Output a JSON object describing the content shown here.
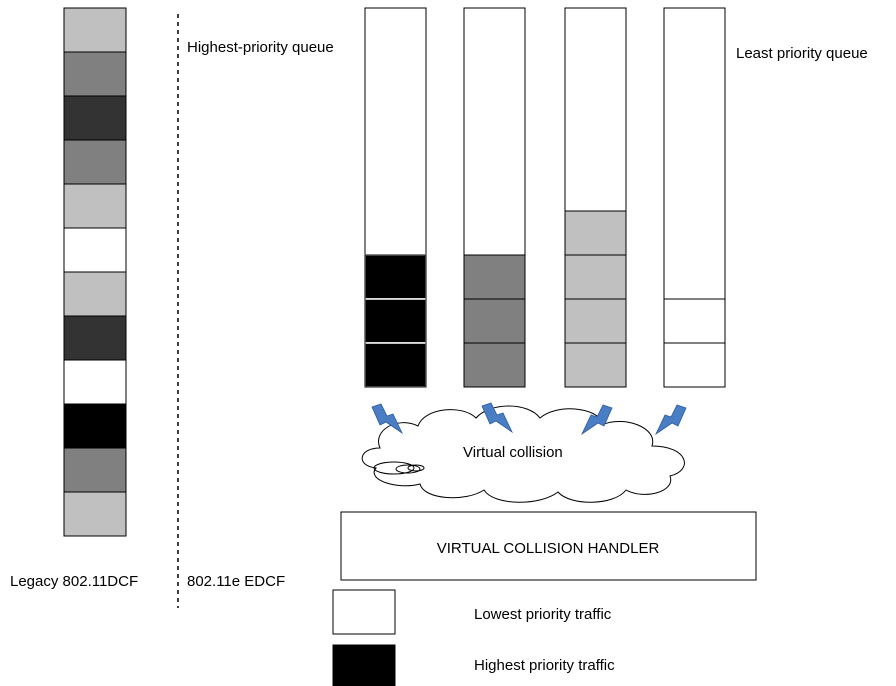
{
  "labels": {
    "highest_queue": "Highest-priority queue",
    "least_queue": "Least priority queue",
    "legacy": "Legacy 802.11DCF",
    "edcf": "802.11e EDCF",
    "virtual_collision": "Virtual collision",
    "handler": "VIRTUAL COLLISION HANDLER",
    "legend_lowest": "Lowest priority traffic",
    "legend_highest": "Highest priority traffic"
  },
  "colors": {
    "white": "#ffffff",
    "light_gray": "#c0c0c0",
    "gray": "#808080",
    "dark_gray": "#333333",
    "black": "#000000",
    "lightning": "#4a7ec4"
  },
  "legacy_stack": [
    "light_gray",
    "gray",
    "dark_gray",
    "gray",
    "light_gray",
    "white",
    "light_gray",
    "dark_gray",
    "white",
    "black",
    "gray",
    "light_gray"
  ],
  "edcf_queues": [
    {
      "name": "queue-1-highest",
      "packets": [
        "black",
        "black",
        "black"
      ]
    },
    {
      "name": "queue-2",
      "packets": [
        "gray",
        "gray",
        "gray"
      ]
    },
    {
      "name": "queue-3",
      "packets": [
        "light_gray",
        "light_gray",
        "light_gray",
        "light_gray"
      ]
    },
    {
      "name": "queue-4-least",
      "packets": [
        "white",
        "white"
      ]
    }
  ],
  "legend": [
    {
      "color": "white",
      "label_key": "legend_lowest"
    },
    {
      "color": "black",
      "label_key": "legend_highest"
    }
  ]
}
